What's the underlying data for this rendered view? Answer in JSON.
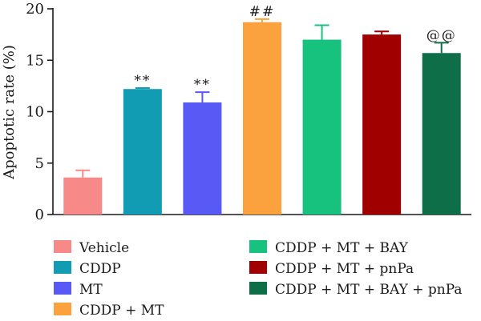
{
  "chart_data": {
    "type": "bar",
    "ylabel": "Apoptotic rate (%)",
    "ylim": [
      0,
      20
    ],
    "yticks": [
      0,
      5,
      10,
      15,
      20
    ],
    "grid": false,
    "legend_position": "bottom",
    "categories": [
      "Vehicle",
      "CDDP",
      "MT",
      "CDDP + MT",
      "CDDP + MT + BAY",
      "CDDP + MT + pnPa",
      "CDDP + MT + BAY + pnPa"
    ],
    "values": [
      3.6,
      12.2,
      10.9,
      18.7,
      17.0,
      17.5,
      15.7
    ],
    "errors": [
      0.7,
      0.1,
      1.0,
      0.3,
      1.4,
      0.3,
      1.0
    ],
    "annotations": [
      "",
      "**",
      "**",
      "##",
      "",
      "",
      "@@"
    ],
    "colors": [
      "#f88989",
      "#119cb3",
      "#5959f5",
      "#fba23f",
      "#16c27e",
      "#a00000",
      "#0d6e47"
    ]
  }
}
